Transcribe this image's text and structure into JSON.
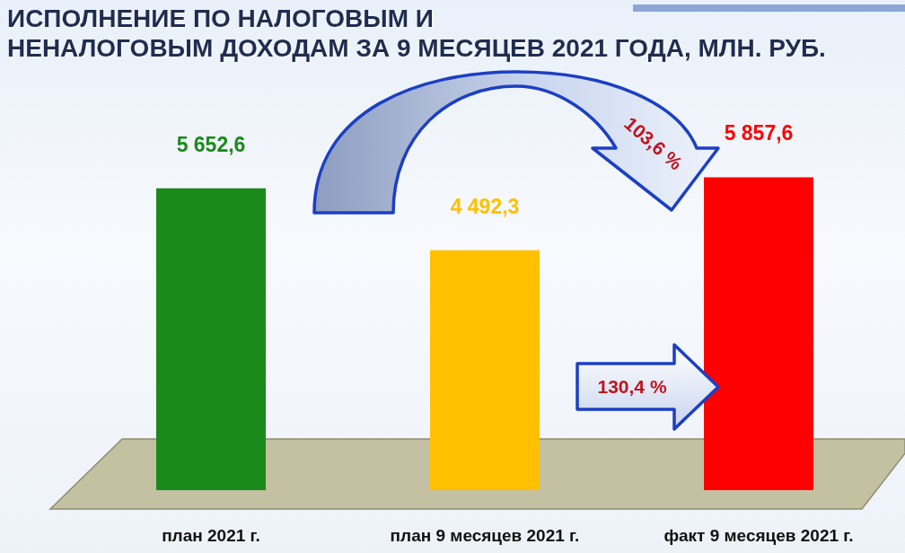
{
  "chart_data": {
    "type": "bar",
    "title": "ИСПОЛНЕНИЕ ПО НАЛОГОВЫМ И\nНЕНАЛОГОВЫМ ДОХОДАМ ЗА 9 МЕСЯЦЕВ 2021 ГОДА, МЛН. РУБ.",
    "categories": [
      "план 2021 г.",
      "план 9 месяцев 2021 г.",
      "факт 9 месяцев 2021 г."
    ],
    "values": [
      5652.6,
      4492.3,
      5857.6
    ],
    "colors": [
      "#1a8a1a",
      "#ffc000",
      "#ff0000"
    ],
    "value_labels": [
      "5 652,6",
      "4 492,3",
      "5 857,6"
    ],
    "annotations": [
      "103,6 %",
      "130,4 %"
    ]
  }
}
